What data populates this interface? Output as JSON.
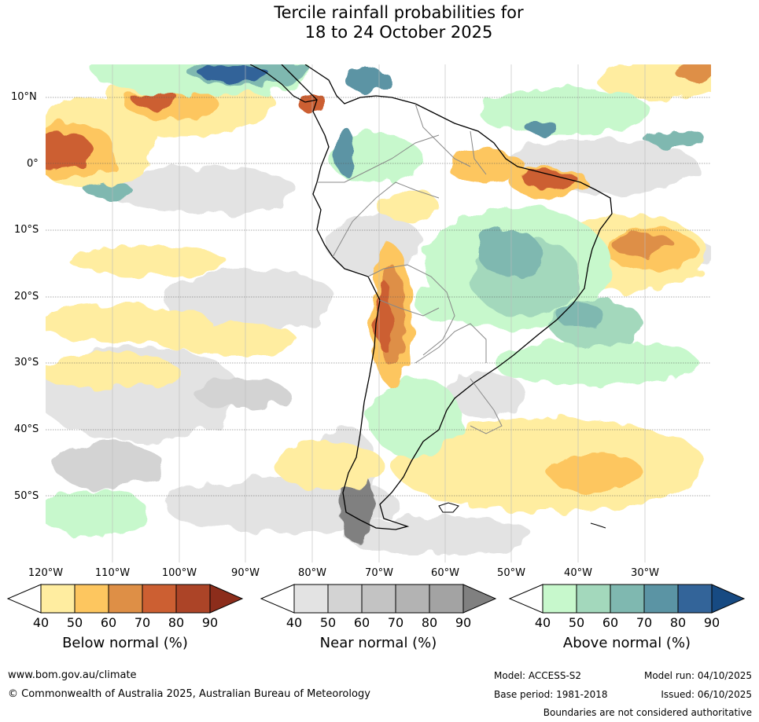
{
  "title": {
    "line1": "Tercile rainfall probabilities for",
    "line2": "18 to 24 October 2025"
  },
  "map": {
    "region": "South America and surrounding oceans",
    "lat_labels": [
      "10°N",
      "0°",
      "10°S",
      "20°S",
      "30°S",
      "40°S",
      "50°S"
    ],
    "lon_labels": [
      "120°W",
      "110°W",
      "100°W",
      "90°W",
      "80°W",
      "70°W",
      "60°W",
      "50°W",
      "40°W",
      "30°W"
    ]
  },
  "legends": [
    {
      "title": "Below normal (%)",
      "ticks": [
        "40",
        "50",
        "60",
        "70",
        "80",
        "90"
      ],
      "colors": [
        "#ffeda0",
        "#fdc65f",
        "#de8f46",
        "#cc5f32",
        "#ac4427",
        "#8c2d1b"
      ]
    },
    {
      "title": "Near normal (%)",
      "ticks": [
        "40",
        "50",
        "60",
        "70",
        "80",
        "90"
      ],
      "colors": [
        "#e3e3e3",
        "#d3d3d3",
        "#c3c3c3",
        "#b3b3b3",
        "#a3a3a3",
        "#808080"
      ]
    },
    {
      "title": "Above normal (%)",
      "ticks": [
        "40",
        "50",
        "60",
        "70",
        "80",
        "90"
      ],
      "colors": [
        "#c7f8cc",
        "#a3d8bc",
        "#7fb8b0",
        "#5b94a4",
        "#336499",
        "#174a82"
      ]
    }
  ],
  "footer": {
    "url": "www.bom.gov.au/climate",
    "copyright": "© Commonwealth of Australia 2025, Australian Bureau of Meteorology",
    "model": "Model: ACCESS-S2",
    "model_run": "Model run: 04/10/2025",
    "base_period": "Base period: 1981-2018",
    "issued": "Issued: 06/10/2025",
    "disclaimer": "Boundaries are not considered authoritative"
  }
}
